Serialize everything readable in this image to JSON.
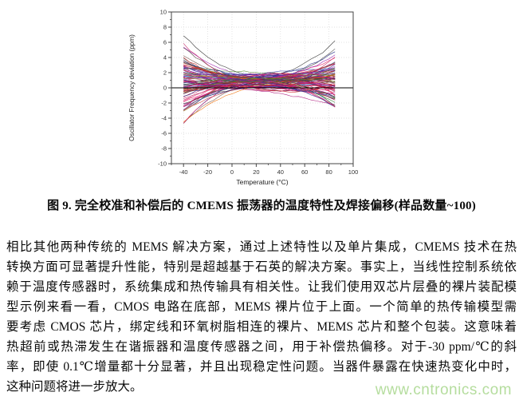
{
  "figure_caption": "图 9. 完全校准和补偿后的 CMEMS 振荡器的温度特性及焊接偏移(样品数量~100)",
  "body_lines": [
    "相比其他两种传统的 MEMS 解决方案，通过上述特性以及单片集成，CMEMS 技术在热",
    "转换方面可显著提升性能，特别是超越基于石英的解决方案。事实上，当线性控制系统依",
    "赖于温度传感器时，系统集成和热传输具有相关性。让我们使用双芯片层叠的裸片装配模",
    "型示例来看一看，CMOS 电路在底部，MEMS 裸片位于上面。一个简单的热传输模型需",
    "要考虑 CMOS 芯片，绑定线和环氧树脂相连的裸片、MEMS 芯片和整个包装。这意味着",
    "热超前或热滞发生在谐振器和温度传感器之间，用于补偿热偏移。对于-30 ppm/℃的斜",
    "率，即使 0.1℃增量都十分显著，并且出现稳定性问题。当器件暴露在快速热变化中时，",
    "这种问题将进一步放大。"
  ],
  "watermark": {
    "text": "www.cntronics.com",
    "color": "#b5dd9e"
  },
  "chart_data": {
    "type": "line",
    "title": "",
    "xlabel": "Temperature (°C)",
    "ylabel": "Oscillator Frequency deviation (ppm)",
    "xlim": [
      -50,
      100
    ],
    "ylim": [
      -10,
      10
    ],
    "x_ticks": [
      -40,
      -20,
      0,
      20,
      40,
      60,
      80,
      100
    ],
    "y_ticks": [
      -10,
      -8,
      -6,
      -4,
      -2,
      0,
      2,
      4,
      6,
      8,
      10
    ],
    "x_minor_step": 10,
    "y_minor_step": 1,
    "grid": true,
    "zero_line": true,
    "legend": "none",
    "n_series": 100,
    "data_x_range": [
      -40,
      85
    ],
    "data_x_step": 5,
    "envelope": {
      "anchor_x": [
        -40,
        18,
        85
      ],
      "left_range": [
        -5.2,
        7.2
      ],
      "mid_range": [
        -0.6,
        2.0
      ],
      "right_range": [
        -2.5,
        6.6
      ],
      "dense_band": [
        0,
        2.5
      ]
    },
    "generation": {
      "seed": 1337,
      "mid_mean": 0.85,
      "mid_sd": 0.55,
      "shape_sd": 1.0,
      "left_gain": 2.1,
      "left_noise": 1.15,
      "right_gain": 1.55,
      "right_noise": 0.95,
      "jitter": 0.07
    },
    "palette": [
      "#c2185b",
      "#d81b60",
      "#e91e8c",
      "#cc0066",
      "#aa1177",
      "#e0407f",
      "#b03060",
      "#cc2244",
      "#c62828",
      "#b71c1c",
      "#d32f2f",
      "#ad1457",
      "#e91e63",
      "#aa0055",
      "#993366",
      "#922b6a",
      "#8e24aa",
      "#7b1fa2",
      "#6a1b9a",
      "#9c27b0",
      "#4527a0",
      "#283593",
      "#1a237e",
      "#3949ab",
      "#1565c0",
      "#5c6bc0",
      "#006064",
      "#00695c",
      "#2e7d32",
      "#558b2f",
      "#827717",
      "#9e9d24",
      "#ef6c00",
      "#e65100",
      "#6d4c41",
      "#4e342e",
      "#212121",
      "#424242",
      "#d81b60",
      "#c2185b"
    ],
    "axis_color": "#444444",
    "grid_color": "#d8d8d8",
    "tick_text_color": "#333333",
    "description": "~100 unit sample curves of oscillator frequency deviation vs temperature after full calibration, compensation and solder shift; spread ±5-7 ppm at -40C, converging to ~0-2 ppm near +20C, spreading to -2.5..+6.6 ppm at +85C"
  }
}
